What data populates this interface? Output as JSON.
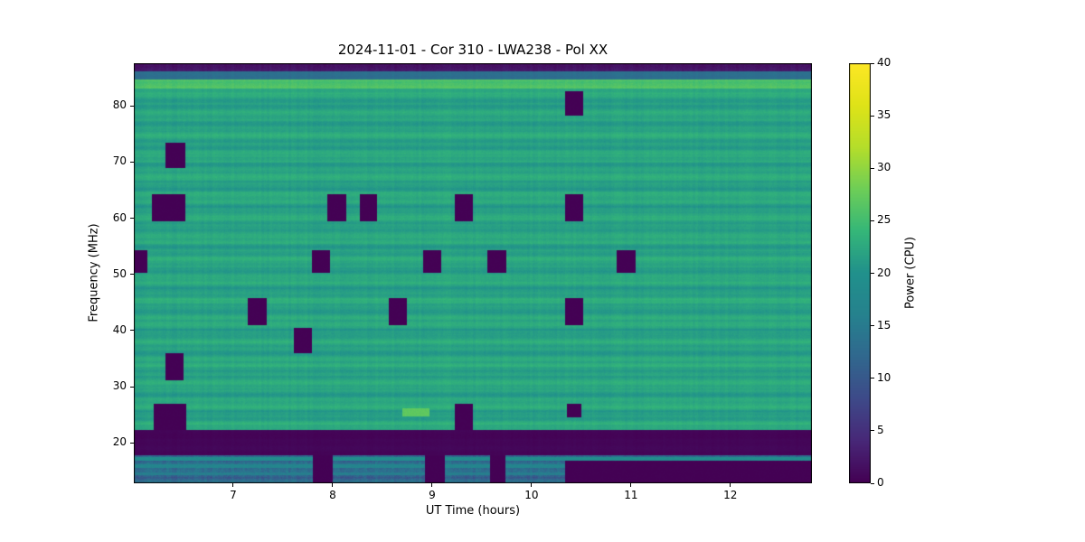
{
  "figure": {
    "background": "#ffffff",
    "frame_color": "#000000"
  },
  "chart_data": {
    "type": "heatmap",
    "title": "2024-11-01 - Cor 310 - LWA238 - Pol XX",
    "xlabel": "UT Time (hours)",
    "ylabel": "Frequency (MHz)",
    "x_range": [
      6.0,
      12.82
    ],
    "y_range": [
      12.8,
      87.6
    ],
    "x_ticks": [
      7,
      8,
      9,
      10,
      11,
      12
    ],
    "y_ticks": [
      20,
      30,
      40,
      50,
      60,
      70,
      80
    ],
    "colormap": "viridis",
    "colorbar": {
      "label": "Power (CPU)",
      "range": [
        0,
        40
      ],
      "ticks": [
        0,
        5,
        10,
        15,
        20,
        25,
        30,
        35,
        40
      ]
    },
    "background_power": 22,
    "flagged_power": 0,
    "horizontal_bands": [
      {
        "f0": 86.2,
        "f1": 87.6,
        "power": 2,
        "noise": 1
      },
      {
        "f0": 84.7,
        "f1": 86.2,
        "power": 13,
        "noise": 1
      },
      {
        "f0": 83.1,
        "f1": 84.7,
        "power": 26,
        "noise": 1
      },
      {
        "f0": 17.8,
        "f1": 22.3,
        "power": 0.5,
        "noise": 0.3
      },
      {
        "f0": 12.8,
        "f1": 17.8,
        "power": 13,
        "noise": 3
      }
    ],
    "bottom_band_lines": [
      {
        "f": 17.2,
        "power": 19
      },
      {
        "f": 15.8,
        "power": 17
      },
      {
        "f": 14.5,
        "power": 15.5
      }
    ],
    "bright_features": [
      {
        "t0": 8.7,
        "t1": 8.97,
        "f0": 24.7,
        "f1": 26.2,
        "power": 27
      }
    ],
    "flagged_regions": [
      {
        "t0": 6.0,
        "t1": 6.14,
        "f0": 50.2,
        "f1": 54.3
      },
      {
        "t0": 6.32,
        "t1": 6.52,
        "f0": 69.0,
        "f1": 73.4
      },
      {
        "t0": 6.18,
        "t1": 6.52,
        "f0": 59.5,
        "f1": 64.2
      },
      {
        "t0": 6.32,
        "t1": 6.5,
        "f0": 31.2,
        "f1": 36.0
      },
      {
        "t0": 6.2,
        "t1": 6.53,
        "f0": 22.3,
        "f1": 27.0
      },
      {
        "t0": 7.15,
        "t1": 7.34,
        "f0": 41.0,
        "f1": 45.7
      },
      {
        "t0": 7.61,
        "t1": 7.79,
        "f0": 36.0,
        "f1": 40.5
      },
      {
        "t0": 7.79,
        "t1": 7.97,
        "f0": 50.2,
        "f1": 54.3
      },
      {
        "t0": 7.95,
        "t1": 8.14,
        "f0": 59.5,
        "f1": 64.2
      },
      {
        "t0": 8.27,
        "t1": 8.45,
        "f0": 59.5,
        "f1": 64.2
      },
      {
        "t0": 8.56,
        "t1": 8.75,
        "f0": 41.0,
        "f1": 45.7
      },
      {
        "t0": 8.91,
        "t1": 9.09,
        "f0": 50.2,
        "f1": 54.3
      },
      {
        "t0": 9.23,
        "t1": 9.41,
        "f0": 59.5,
        "f1": 64.2
      },
      {
        "t0": 9.23,
        "t1": 9.41,
        "f0": 22.3,
        "f1": 27.0
      },
      {
        "t0": 9.56,
        "t1": 9.75,
        "f0": 50.2,
        "f1": 54.3
      },
      {
        "t0": 10.34,
        "t1": 10.52,
        "f0": 78.3,
        "f1": 82.6
      },
      {
        "t0": 10.34,
        "t1": 10.52,
        "f0": 59.5,
        "f1": 64.2
      },
      {
        "t0": 10.34,
        "t1": 10.52,
        "f0": 41.0,
        "f1": 45.7
      },
      {
        "t0": 10.36,
        "t1": 10.5,
        "f0": 24.6,
        "f1": 26.9
      },
      {
        "t0": 10.86,
        "t1": 11.05,
        "f0": 50.2,
        "f1": 54.3
      },
      {
        "t0": 7.8,
        "t1": 8.0,
        "f0": 12.8,
        "f1": 17.8
      },
      {
        "t0": 8.93,
        "t1": 9.13,
        "f0": 12.8,
        "f1": 17.8
      },
      {
        "t0": 9.58,
        "t1": 9.74,
        "f0": 12.8,
        "f1": 17.8
      },
      {
        "t0": 10.34,
        "t1": 12.82,
        "f0": 12.8,
        "f1": 16.8
      }
    ]
  }
}
